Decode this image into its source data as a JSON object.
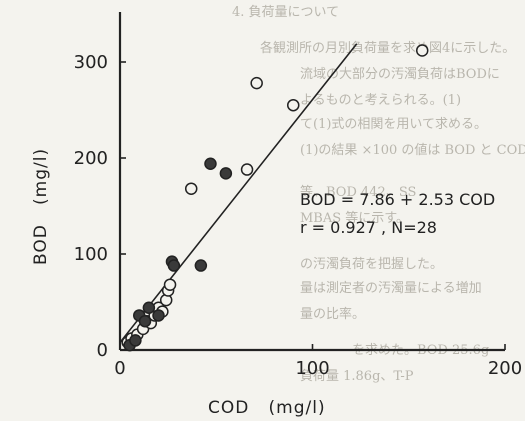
{
  "chart_data": {
    "type": "scatter",
    "xlabel": "COD   (mg/l)",
    "ylabel": "BOD   (mg/l)",
    "xlim": [
      0,
      200
    ],
    "ylim": [
      0,
      330
    ],
    "x_ticks": [
      0,
      100,
      200
    ],
    "y_ticks": [
      0,
      100,
      200,
      300
    ],
    "x_tick_labels": [
      "0",
      "100",
      "200"
    ],
    "y_tick_labels": [
      "0",
      "100",
      "200",
      "300"
    ],
    "grid": false,
    "series": [
      {
        "marker": "open",
        "points": [
          [
            4,
            8
          ],
          [
            6,
            12
          ],
          [
            9,
            16
          ],
          [
            12,
            22
          ],
          [
            14,
            30
          ],
          [
            16,
            28
          ],
          [
            18,
            36
          ],
          [
            20,
            44
          ],
          [
            22,
            40
          ],
          [
            24,
            52
          ],
          [
            25,
            62
          ],
          [
            26,
            68
          ],
          [
            37,
            168
          ],
          [
            66,
            188
          ],
          [
            71,
            278
          ],
          [
            90,
            255
          ],
          [
            157,
            312
          ]
        ]
      },
      {
        "marker": "filled",
        "points": [
          [
            5,
            5
          ],
          [
            8,
            10
          ],
          [
            10,
            36
          ],
          [
            13,
            30
          ],
          [
            15,
            44
          ],
          [
            20,
            36
          ],
          [
            27,
            92
          ],
          [
            28,
            88
          ],
          [
            42,
            88
          ],
          [
            47,
            194
          ],
          [
            55,
            184
          ]
        ]
      }
    ],
    "regression_line": {
      "intercept": 7.86,
      "slope": 2.53
    },
    "annotation": {
      "line1": "BOD = 7.86 + 2.53 COD",
      "line2": "r = 0.927 , N=28"
    },
    "colors": {
      "open_marker_fill": "#f4f3ee",
      "filled_marker_fill": "#3a3a3a",
      "ink": "#222222"
    }
  },
  "background_text": {
    "lines": [
      "4. 負荷量について",
      "各観測所の月別負荷量を求め図4に示した。",
      "流域の大部分の汚濁負荷はBODに",
      "よるものと考えられる。(1)",
      "て(1)式の相関を用いて求める。",
      "(1)の結果 ×100 の値は BOD と COD",
      "等、BOD 442、SS",
      "MBAS 等に示す。",
      "の汚濁負荷を把握した。",
      "量は測定者の汚濁量による増加",
      "量の比率。",
      "を求めた。BOD 25.6g",
      "負荷量 1.86g、T-P"
    ]
  }
}
